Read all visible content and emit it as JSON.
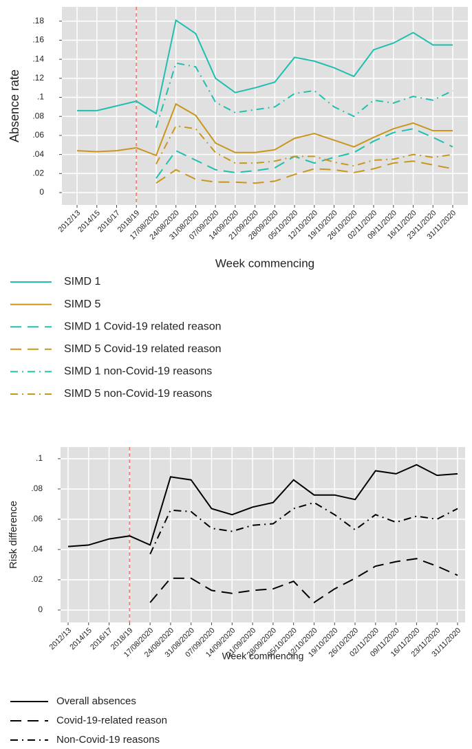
{
  "chart_data": [
    {
      "type": "line",
      "ylabel": "Absence rate",
      "xlabel": "Week commencing",
      "categories": [
        "2012/13",
        "2014/15",
        "2016/17",
        "2018/19",
        "17/08/2020",
        "24/08/2020",
        "31/08/2020",
        "07/09/2020",
        "14/09/2020",
        "21/09/2020",
        "28/09/2020",
        "05/10/2020",
        "12/10/2020",
        "19/10/2020",
        "26/10/2020",
        "02/11/2020",
        "09/11/2020",
        "16/11/2020",
        "23/11/2020",
        "31/11/2020"
      ],
      "ylim": [
        -0.013,
        0.195
      ],
      "yticks": [
        {
          "value": 0.18,
          "label": ".18"
        },
        {
          "value": 0.16,
          "label": ".16"
        },
        {
          "value": 0.14,
          "label": ".14"
        },
        {
          "value": 0.12,
          "label": ".12"
        },
        {
          "value": 0.1,
          "label": ".1"
        },
        {
          "value": 0.08,
          "label": ".08"
        },
        {
          "value": 0.06,
          "label": ".06"
        },
        {
          "value": 0.04,
          "label": ".04"
        },
        {
          "value": 0.02,
          "label": ".02"
        },
        0
      ],
      "grid": true,
      "vline": "2018/19",
      "vline_color": "#f08070",
      "series": [
        {
          "name": "SIMD 1",
          "color": "#1fbfb0",
          "linestyle": "solid",
          "values": [
            0.086,
            0.086,
            0.091,
            0.096,
            0.083,
            0.181,
            0.167,
            0.12,
            0.105,
            0.11,
            0.116,
            0.142,
            0.138,
            0.131,
            0.122,
            0.15,
            0.157,
            0.168,
            0.155,
            0.155
          ]
        },
        {
          "name": "SIMD 5",
          "color": "#c9961a",
          "linestyle": "solid",
          "values": [
            0.044,
            0.043,
            0.044,
            0.047,
            0.039,
            0.093,
            0.081,
            0.052,
            0.042,
            0.042,
            0.045,
            0.057,
            0.062,
            0.055,
            0.048,
            0.058,
            0.067,
            0.073,
            0.065,
            0.065
          ]
        },
        {
          "name": "SIMD 1 Covid-19 related reason",
          "color": "#1fbfb0",
          "linestyle": "dashed",
          "values": [
            null,
            null,
            null,
            null,
            0.015,
            0.044,
            0.034,
            0.024,
            0.021,
            0.023,
            0.026,
            0.038,
            0.031,
            0.037,
            0.042,
            0.054,
            0.063,
            0.067,
            0.058,
            0.048
          ]
        },
        {
          "name": "SIMD 5 Covid-19 related reason",
          "color": "#c9961a",
          "linestyle": "dashed",
          "values": [
            null,
            null,
            null,
            null,
            0.01,
            0.024,
            0.014,
            0.011,
            0.011,
            0.01,
            0.012,
            0.019,
            0.025,
            0.024,
            0.021,
            0.025,
            0.031,
            0.033,
            0.029,
            0.025
          ]
        },
        {
          "name": "SIMD 1 non-Covid-19 reasons",
          "color": "#1fbfb0",
          "linestyle": "dashdot",
          "values": [
            null,
            null,
            null,
            null,
            0.068,
            0.136,
            0.132,
            0.095,
            0.084,
            0.087,
            0.09,
            0.104,
            0.107,
            0.09,
            0.08,
            0.097,
            0.094,
            0.101,
            0.097,
            0.107
          ]
        },
        {
          "name": "SIMD 5 non-Covid-19 reasons",
          "color": "#c9961a",
          "linestyle": "dashdot",
          "values": [
            null,
            null,
            null,
            null,
            0.03,
            0.07,
            0.067,
            0.042,
            0.031,
            0.031,
            0.033,
            0.038,
            0.038,
            0.032,
            0.028,
            0.034,
            0.035,
            0.04,
            0.037,
            0.04
          ]
        }
      ]
    },
    {
      "type": "line",
      "ylabel": "Risk difference",
      "xlabel": "Week commencing",
      "categories": [
        "2012/13",
        "2014/15",
        "2016/17",
        "2018/19",
        "17/08/2020",
        "24/08/2020",
        "31/08/2020",
        "07/09/2020",
        "14/09/2020",
        "21/09/2020",
        "28/09/2020",
        "05/10/2020",
        "12/10/2020",
        "19/10/2020",
        "26/10/2020",
        "02/11/2020",
        "09/11/2020",
        "16/11/2020",
        "23/11/2020",
        "31/11/2020"
      ],
      "ylim": [
        -0.0082,
        0.1077
      ],
      "yticks": [
        {
          "value": 0.1,
          "label": ".1"
        },
        {
          "value": 0.08,
          "label": ".08"
        },
        {
          "value": 0.06,
          "label": ".06"
        },
        {
          "value": 0.04,
          "label": ".04"
        },
        {
          "value": 0.02,
          "label": ".02"
        },
        0
      ],
      "grid": true,
      "vline": "2018/19",
      "vline_color": "#f08070",
      "series": [
        {
          "name": "Overall absences",
          "color": "#000000",
          "linestyle": "solid",
          "values": [
            0.042,
            0.043,
            0.047,
            0.049,
            0.043,
            0.088,
            0.086,
            0.067,
            0.063,
            0.068,
            0.071,
            0.086,
            0.076,
            0.076,
            0.073,
            0.092,
            0.09,
            0.096,
            0.089,
            0.09
          ]
        },
        {
          "name": "Covid-19-related reason",
          "color": "#000000",
          "linestyle": "dashed",
          "values": [
            null,
            null,
            null,
            null,
            0.005,
            0.021,
            0.021,
            0.013,
            0.011,
            0.013,
            0.014,
            0.019,
            0.005,
            0.014,
            0.021,
            0.029,
            0.032,
            0.034,
            0.029,
            0.023
          ]
        },
        {
          "name": "Non-Covid-19 reasons",
          "color": "#000000",
          "linestyle": "dashdot",
          "values": [
            null,
            null,
            null,
            null,
            0.037,
            0.066,
            0.065,
            0.054,
            0.052,
            0.056,
            0.057,
            0.067,
            0.071,
            0.063,
            0.053,
            0.063,
            0.058,
            0.062,
            0.06,
            0.067
          ]
        }
      ]
    }
  ]
}
